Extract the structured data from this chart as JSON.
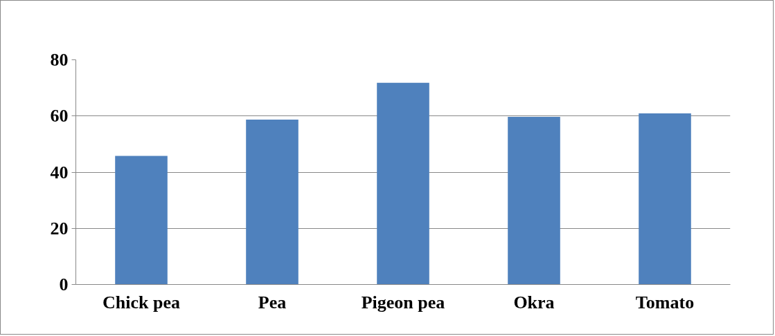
{
  "chart_data": {
    "type": "bar",
    "categories": [
      "Chick pea",
      "Pea",
      "Pigeon pea",
      "Okra",
      "Tomato"
    ],
    "values": [
      45.8,
      58.7,
      71.8,
      59.7,
      60.9
    ],
    "color": "#4f81bd",
    "ylim": [
      0,
      80
    ],
    "yticks": [
      0,
      20,
      40,
      60,
      80
    ],
    "grid": "y"
  }
}
